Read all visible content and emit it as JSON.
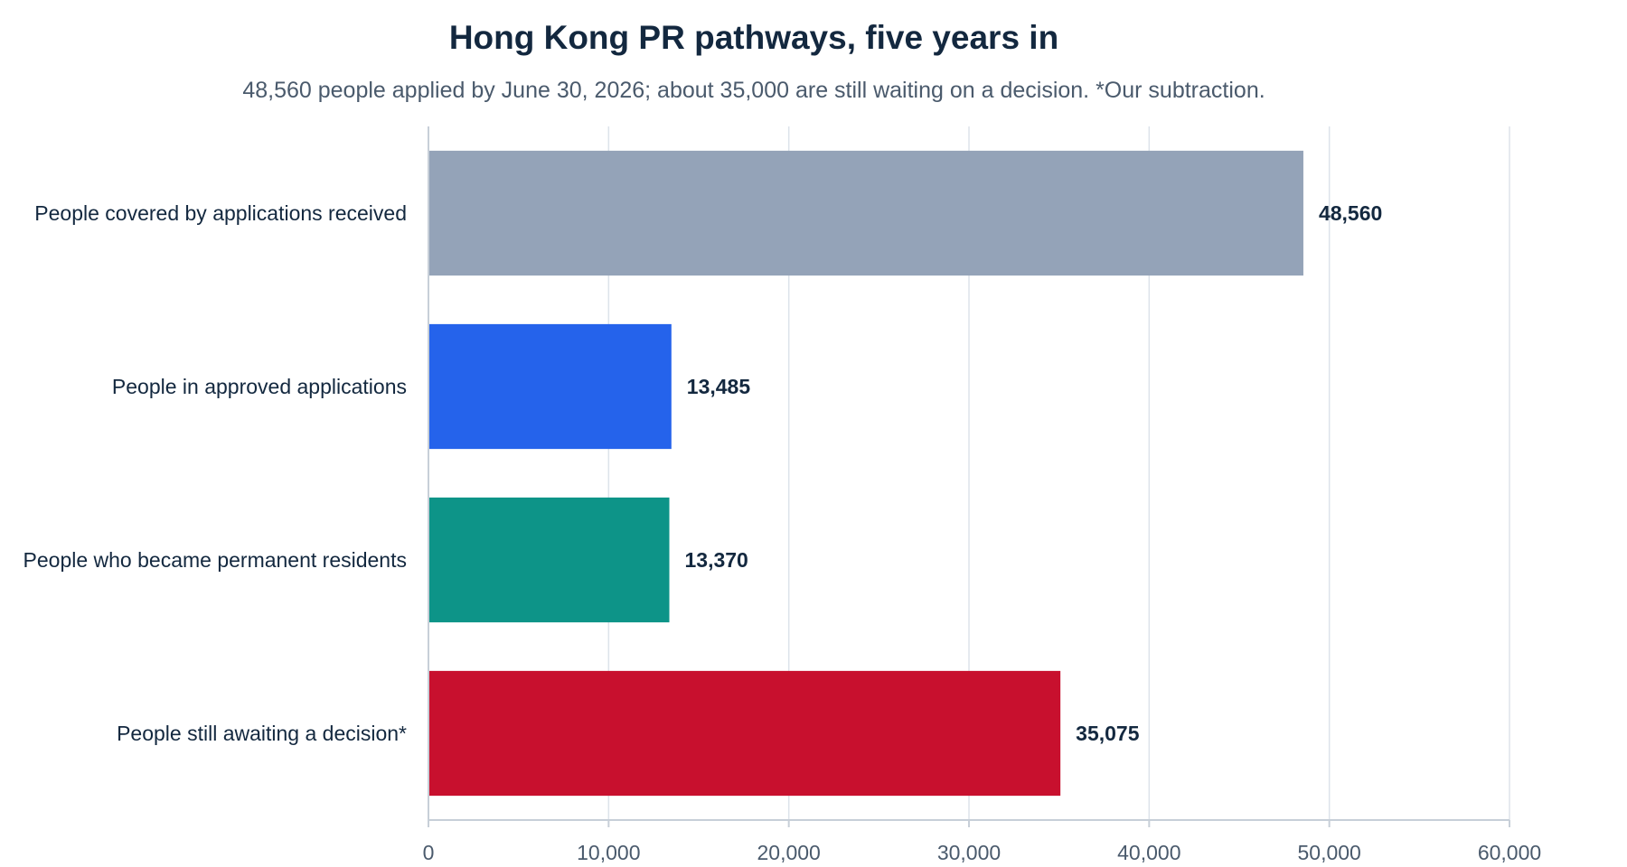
{
  "chart_data": {
    "type": "bar",
    "orientation": "horizontal",
    "title": "Hong Kong PR pathways, five years in",
    "subtitle": "48,560 people applied by June 30, 2026; about 35,000 are still waiting on a decision. *Our subtraction.",
    "xlabel": "",
    "ylabel": "",
    "xlim": [
      0,
      60000
    ],
    "ticks": [
      0,
      10000,
      20000,
      30000,
      40000,
      50000,
      60000
    ],
    "tick_labels": [
      "0",
      "10,000",
      "20,000",
      "30,000",
      "40,000",
      "50,000",
      "60,000"
    ],
    "grid": true,
    "legend": "none",
    "categories": [
      "People covered by applications received",
      "People in approved applications",
      "People who became permanent residents",
      "People still awaiting a decision*"
    ],
    "values": [
      48560,
      13485,
      13370,
      35075
    ],
    "value_labels": [
      "48,560",
      "13,485",
      "13,370",
      "35,075"
    ],
    "colors": [
      "#94a3b8",
      "#2563eb",
      "#0d9488",
      "#c8102e"
    ]
  }
}
